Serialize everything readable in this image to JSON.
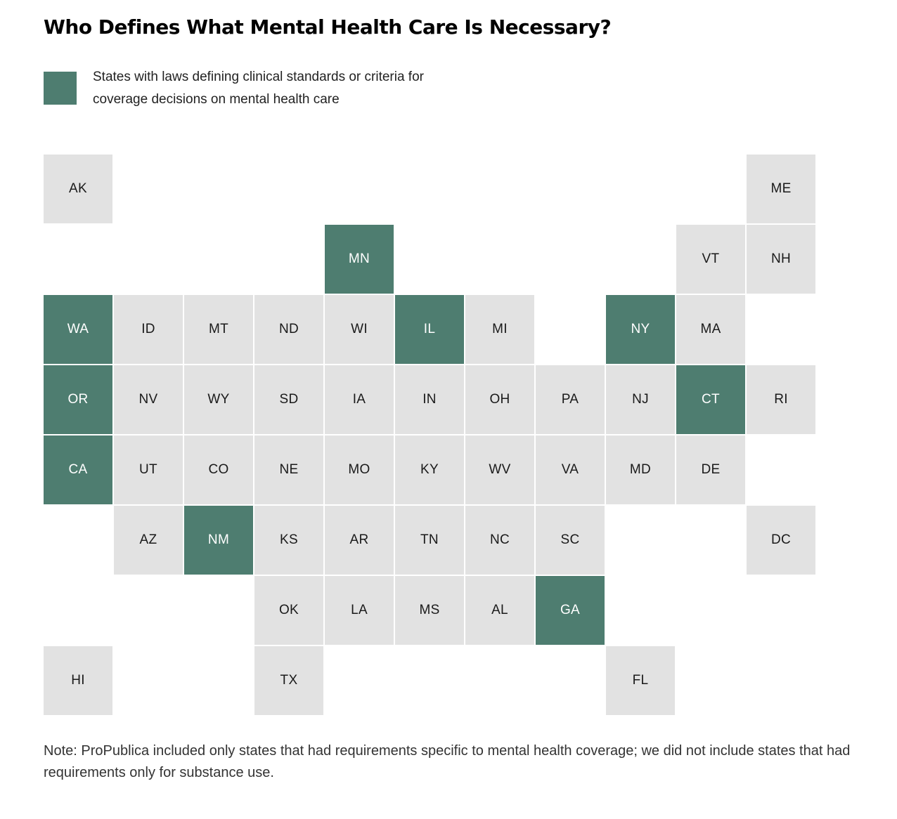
{
  "title": "Who Defines What Mental Health Care Is Necessary?",
  "legend": {
    "label": "States with laws defining clinical standards or criteria for coverage decisions on mental health care",
    "color": "#4e7d70"
  },
  "colors": {
    "highlighted": "#4e7d70",
    "other": "#e2e2e2",
    "highlighted_text": "#ffffff",
    "other_text": "#1a1a1a"
  },
  "states": [
    {
      "abbr": "AK",
      "row": 0,
      "col": 0,
      "highlighted": false
    },
    {
      "abbr": "ME",
      "row": 0,
      "col": 10,
      "highlighted": false
    },
    {
      "abbr": "MN",
      "row": 1,
      "col": 4,
      "highlighted": true
    },
    {
      "abbr": "VT",
      "row": 1,
      "col": 9,
      "highlighted": false
    },
    {
      "abbr": "NH",
      "row": 1,
      "col": 10,
      "highlighted": false
    },
    {
      "abbr": "WA",
      "row": 2,
      "col": 0,
      "highlighted": true
    },
    {
      "abbr": "ID",
      "row": 2,
      "col": 1,
      "highlighted": false
    },
    {
      "abbr": "MT",
      "row": 2,
      "col": 2,
      "highlighted": false
    },
    {
      "abbr": "ND",
      "row": 2,
      "col": 3,
      "highlighted": false
    },
    {
      "abbr": "WI",
      "row": 2,
      "col": 4,
      "highlighted": false
    },
    {
      "abbr": "IL",
      "row": 2,
      "col": 5,
      "highlighted": true
    },
    {
      "abbr": "MI",
      "row": 2,
      "col": 6,
      "highlighted": false
    },
    {
      "abbr": "NY",
      "row": 2,
      "col": 8,
      "highlighted": true
    },
    {
      "abbr": "MA",
      "row": 2,
      "col": 9,
      "highlighted": false
    },
    {
      "abbr": "OR",
      "row": 3,
      "col": 0,
      "highlighted": true
    },
    {
      "abbr": "NV",
      "row": 3,
      "col": 1,
      "highlighted": false
    },
    {
      "abbr": "WY",
      "row": 3,
      "col": 2,
      "highlighted": false
    },
    {
      "abbr": "SD",
      "row": 3,
      "col": 3,
      "highlighted": false
    },
    {
      "abbr": "IA",
      "row": 3,
      "col": 4,
      "highlighted": false
    },
    {
      "abbr": "IN",
      "row": 3,
      "col": 5,
      "highlighted": false
    },
    {
      "abbr": "OH",
      "row": 3,
      "col": 6,
      "highlighted": false
    },
    {
      "abbr": "PA",
      "row": 3,
      "col": 7,
      "highlighted": false
    },
    {
      "abbr": "NJ",
      "row": 3,
      "col": 8,
      "highlighted": false
    },
    {
      "abbr": "CT",
      "row": 3,
      "col": 9,
      "highlighted": true
    },
    {
      "abbr": "RI",
      "row": 3,
      "col": 10,
      "highlighted": false
    },
    {
      "abbr": "CA",
      "row": 4,
      "col": 0,
      "highlighted": true
    },
    {
      "abbr": "UT",
      "row": 4,
      "col": 1,
      "highlighted": false
    },
    {
      "abbr": "CO",
      "row": 4,
      "col": 2,
      "highlighted": false
    },
    {
      "abbr": "NE",
      "row": 4,
      "col": 3,
      "highlighted": false
    },
    {
      "abbr": "MO",
      "row": 4,
      "col": 4,
      "highlighted": false
    },
    {
      "abbr": "KY",
      "row": 4,
      "col": 5,
      "highlighted": false
    },
    {
      "abbr": "WV",
      "row": 4,
      "col": 6,
      "highlighted": false
    },
    {
      "abbr": "VA",
      "row": 4,
      "col": 7,
      "highlighted": false
    },
    {
      "abbr": "MD",
      "row": 4,
      "col": 8,
      "highlighted": false
    },
    {
      "abbr": "DE",
      "row": 4,
      "col": 9,
      "highlighted": false
    },
    {
      "abbr": "AZ",
      "row": 5,
      "col": 1,
      "highlighted": false
    },
    {
      "abbr": "NM",
      "row": 5,
      "col": 2,
      "highlighted": true
    },
    {
      "abbr": "KS",
      "row": 5,
      "col": 3,
      "highlighted": false
    },
    {
      "abbr": "AR",
      "row": 5,
      "col": 4,
      "highlighted": false
    },
    {
      "abbr": "TN",
      "row": 5,
      "col": 5,
      "highlighted": false
    },
    {
      "abbr": "NC",
      "row": 5,
      "col": 6,
      "highlighted": false
    },
    {
      "abbr": "SC",
      "row": 5,
      "col": 7,
      "highlighted": false
    },
    {
      "abbr": "DC",
      "row": 5,
      "col": 10,
      "highlighted": false
    },
    {
      "abbr": "OK",
      "row": 6,
      "col": 3,
      "highlighted": false
    },
    {
      "abbr": "LA",
      "row": 6,
      "col": 4,
      "highlighted": false
    },
    {
      "abbr": "MS",
      "row": 6,
      "col": 5,
      "highlighted": false
    },
    {
      "abbr": "AL",
      "row": 6,
      "col": 6,
      "highlighted": false
    },
    {
      "abbr": "GA",
      "row": 6,
      "col": 7,
      "highlighted": true
    },
    {
      "abbr": "HI",
      "row": 7,
      "col": 0,
      "highlighted": false
    },
    {
      "abbr": "TX",
      "row": 7,
      "col": 3,
      "highlighted": false
    },
    {
      "abbr": "FL",
      "row": 7,
      "col": 8,
      "highlighted": false
    }
  ],
  "note": "Note: ProPublica included only states that had requirements specific to mental health coverage; we did not include states that had requirements only for substance use."
}
